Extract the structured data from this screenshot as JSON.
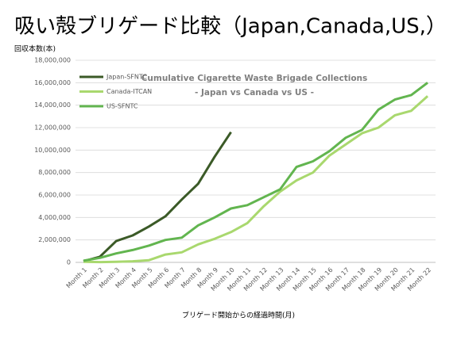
{
  "chart_data": {
    "type": "line",
    "title": "吸い殻ブリゲード比較（Japan,Canada,US,）",
    "chart_title": "Cumulative Cigarette Waste Brigade Collections",
    "chart_subtitle": "- Japan vs Canada vs US -",
    "y_label": "回収本数(本)",
    "x_label": "ブリゲード開始からの経過時間(月)",
    "categories": [
      "Month 1",
      "Month 2",
      "Month 3",
      "Month 4",
      "Month 5",
      "Month 6",
      "Month 7",
      "Month 8",
      "Month 9",
      "Month 10",
      "Month 11",
      "Month 12",
      "Month 13",
      "Month 14",
      "Month 15",
      "Month 16",
      "Month 17",
      "Month 18",
      "Month 19",
      "Month 20",
      "Month 21",
      "Month 22"
    ],
    "series": [
      {
        "name": "Japan-SFNTC",
        "color": "#3b5a27",
        "values": [
          100000,
          500000,
          1900000,
          2400000,
          3200000,
          4100000,
          5600000,
          7000000,
          9400000,
          11600000,
          null,
          null,
          null,
          null,
          null,
          null,
          null,
          null,
          null,
          null,
          null,
          null
        ]
      },
      {
        "name": "Canada-ITCAN",
        "color": "#a9d86e",
        "values": [
          50000,
          30000,
          50000,
          100000,
          200000,
          700000,
          900000,
          1600000,
          2100000,
          2700000,
          3500000,
          5000000,
          6300000,
          7300000,
          8000000,
          9500000,
          10500000,
          11500000,
          12000000,
          13100000,
          13500000,
          14800000
        ]
      },
      {
        "name": "US-SFNTC",
        "color": "#62b54f",
        "values": [
          150000,
          400000,
          800000,
          1100000,
          1500000,
          2000000,
          2200000,
          3300000,
          4000000,
          4800000,
          5100000,
          5800000,
          6500000,
          8500000,
          9000000,
          9900000,
          11100000,
          11800000,
          13600000,
          14500000,
          14900000,
          16000000
        ]
      }
    ],
    "ylim": [
      0,
      18000000
    ],
    "yticks": [
      0,
      {
        "value": 2000000,
        "label": "2,000,000"
      },
      {
        "value": 4000000,
        "label": "4,000,000"
      },
      {
        "value": 6000000,
        "label": "6,000,000"
      },
      {
        "value": 8000000,
        "label": "8,000,000"
      },
      {
        "value": 10000000,
        "label": "10,000,000"
      },
      {
        "value": 12000000,
        "label": "12,000,000"
      },
      {
        "value": 14000000,
        "label": "14,000,000"
      },
      {
        "value": 16000000,
        "label": "16,000,000"
      },
      {
        "value": 18000000,
        "label": "18,000,000"
      }
    ],
    "grid": true
  }
}
